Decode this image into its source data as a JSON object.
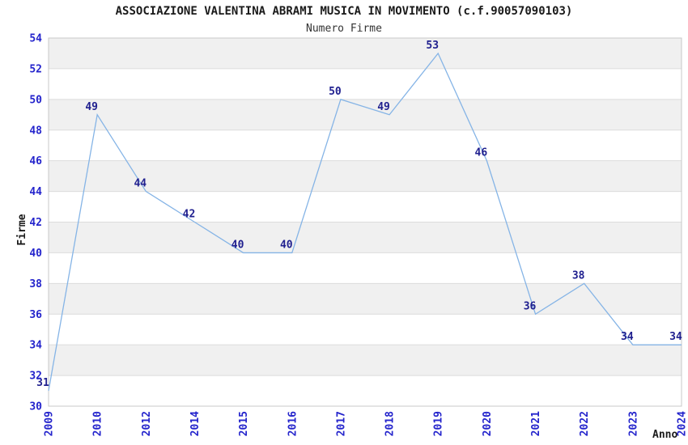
{
  "chart_data": {
    "type": "line",
    "title": "ASSOCIAZIONE VALENTINA ABRAMI MUSICA IN MOVIMENTO (c.f.90057090103)",
    "subtitle": "Numero Firme",
    "xlabel": "Anno",
    "ylabel": "Firme",
    "categories": [
      "2009",
      "2010",
      "2012",
      "2014",
      "2015",
      "2016",
      "2017",
      "2018",
      "2019",
      "2020",
      "2021",
      "2022",
      "2023",
      "2024"
    ],
    "values": [
      31,
      49,
      44,
      42,
      40,
      40,
      50,
      49,
      53,
      46,
      36,
      38,
      34,
      34
    ],
    "ylim": [
      30,
      54
    ],
    "ytick_step": 2,
    "grid": true,
    "banded_background": true,
    "legend": "none",
    "colors": {
      "line": "#85B4E6",
      "data_label": "#20208F",
      "tick_label": "#2424CC",
      "band": "#F0F0F0",
      "gridline": "#DCDCDC",
      "border": "#C8C8C8",
      "title": "#1A1A1A",
      "subtitle": "#333333",
      "axis_label": "#1A1A1A"
    }
  }
}
